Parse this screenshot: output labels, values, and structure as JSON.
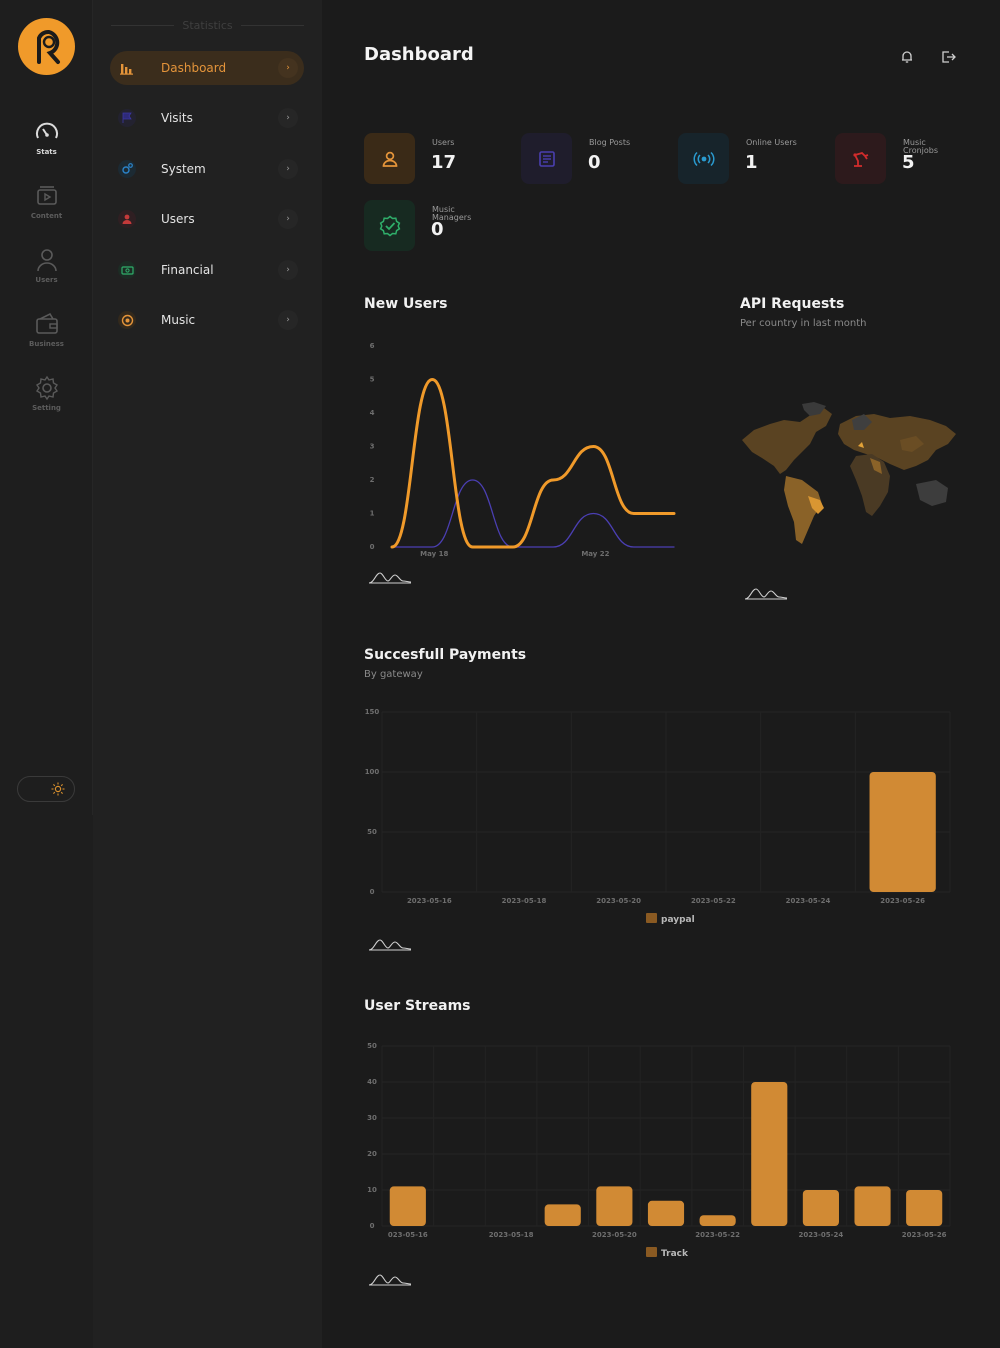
{
  "rail": {
    "items": [
      {
        "label": "Stats",
        "icon": "speedometer-icon",
        "active": true
      },
      {
        "label": "Content",
        "icon": "media-icon",
        "active": false
      },
      {
        "label": "Users",
        "icon": "user-icon",
        "active": false
      },
      {
        "label": "Business",
        "icon": "wallet-icon",
        "active": false
      },
      {
        "label": "Setting",
        "icon": "gear-icon",
        "active": false
      }
    ]
  },
  "nav": {
    "title": "Statistics",
    "items": [
      {
        "label": "Dashboard",
        "icon": "bar-chart-icon",
        "color": "#e4943a",
        "active": true
      },
      {
        "label": "Visits",
        "icon": "flag-icon",
        "color": "#3b36a3"
      },
      {
        "label": "System",
        "icon": "gears-icon",
        "color": "#2b83c9"
      },
      {
        "label": "Users",
        "icon": "user-icon",
        "color": "#c43a3a"
      },
      {
        "label": "Financial",
        "icon": "money-icon",
        "color": "#2fae6a"
      },
      {
        "label": "Music",
        "icon": "disc-icon",
        "color": "#e4943a"
      }
    ]
  },
  "header": {
    "title": "Dashboard"
  },
  "stats": [
    {
      "label": "Users",
      "value": "17",
      "icon": "user-icon",
      "color": "#e4943a",
      "bg": "#3a2a17"
    },
    {
      "label": "Blog Posts",
      "value": "0",
      "icon": "document-icon",
      "color": "#4a3fb0",
      "bg": "#1f1d2c"
    },
    {
      "label": "Online Users",
      "value": "1",
      "icon": "broadcast-icon",
      "color": "#2a9bd0",
      "bg": "#17242b"
    },
    {
      "label": "Music Cronjobs",
      "value": "5",
      "icon": "robot-arm-icon",
      "color": "#d12c2c",
      "bg": "#2d1a1c"
    },
    {
      "label": "Music Managers",
      "value": "0",
      "icon": "verified-icon",
      "color": "#2fae6a",
      "bg": "#172a21"
    }
  ],
  "sections": {
    "new_users": {
      "title": "New Users"
    },
    "api": {
      "title": "API Requests",
      "subtitle": "Per country in last month"
    },
    "payments": {
      "title": "Succesfull Payments",
      "subtitle": "By gateway"
    },
    "streams": {
      "title": "User Streams"
    }
  },
  "colors": {
    "accent": "#f09a2a",
    "secondary_line": "#4b3fb3"
  },
  "chart_data": [
    {
      "type": "line",
      "title": "New Users",
      "x_tick_labels": [
        "May 18",
        "May 22"
      ],
      "x": [
        "2023-05-17",
        "2023-05-18",
        "2023-05-19",
        "2023-05-20",
        "2023-05-21",
        "2023-05-22",
        "2023-05-23",
        "2023-05-24"
      ],
      "series": [
        {
          "values": [
            0,
            5,
            0,
            0,
            2,
            3,
            1,
            1
          ],
          "color": "#f09a2a"
        },
        {
          "values": [
            0,
            0,
            2,
            0,
            0,
            1,
            0,
            0
          ],
          "color": "#4b3fb3"
        }
      ],
      "ylim": [
        0,
        6
      ],
      "yticks": [
        "0",
        "1",
        "2",
        "3",
        "4",
        "5",
        "6"
      ]
    },
    {
      "type": "bar",
      "title": "Succesfull Payments",
      "subtitle": "By gateway",
      "categories": [
        "2023-05-16",
        "2023-05-18",
        "2023-05-20",
        "2023-05-22",
        "2023-05-24",
        "2023-05-26"
      ],
      "series": [
        {
          "name": "paypal",
          "values": [
            0,
            0,
            0,
            0,
            0,
            100
          ],
          "color": "#d18a34"
        }
      ],
      "ylim": [
        0,
        150
      ],
      "yticks": [
        "0",
        "50",
        "100",
        "150"
      ]
    },
    {
      "type": "bar",
      "title": "User Streams",
      "tick_labels": [
        "023-05-16",
        "2023-05-18",
        "2023-05-20",
        "2023-05-22",
        "2023-05-24",
        "2023-05-26"
      ],
      "categories": [
        "2023-05-16",
        "2023-05-17",
        "2023-05-18",
        "2023-05-19",
        "2023-05-20",
        "2023-05-21",
        "2023-05-22",
        "2023-05-23",
        "2023-05-24",
        "2023-05-25",
        "2023-05-26"
      ],
      "series": [
        {
          "name": "Track",
          "values": [
            11,
            0,
            0,
            6,
            11,
            7,
            3,
            40,
            10,
            11,
            10
          ],
          "color": "#d18a34"
        }
      ],
      "ylim": [
        0,
        50
      ],
      "yticks": [
        "0",
        "10",
        "20",
        "30",
        "40",
        "50"
      ]
    }
  ]
}
